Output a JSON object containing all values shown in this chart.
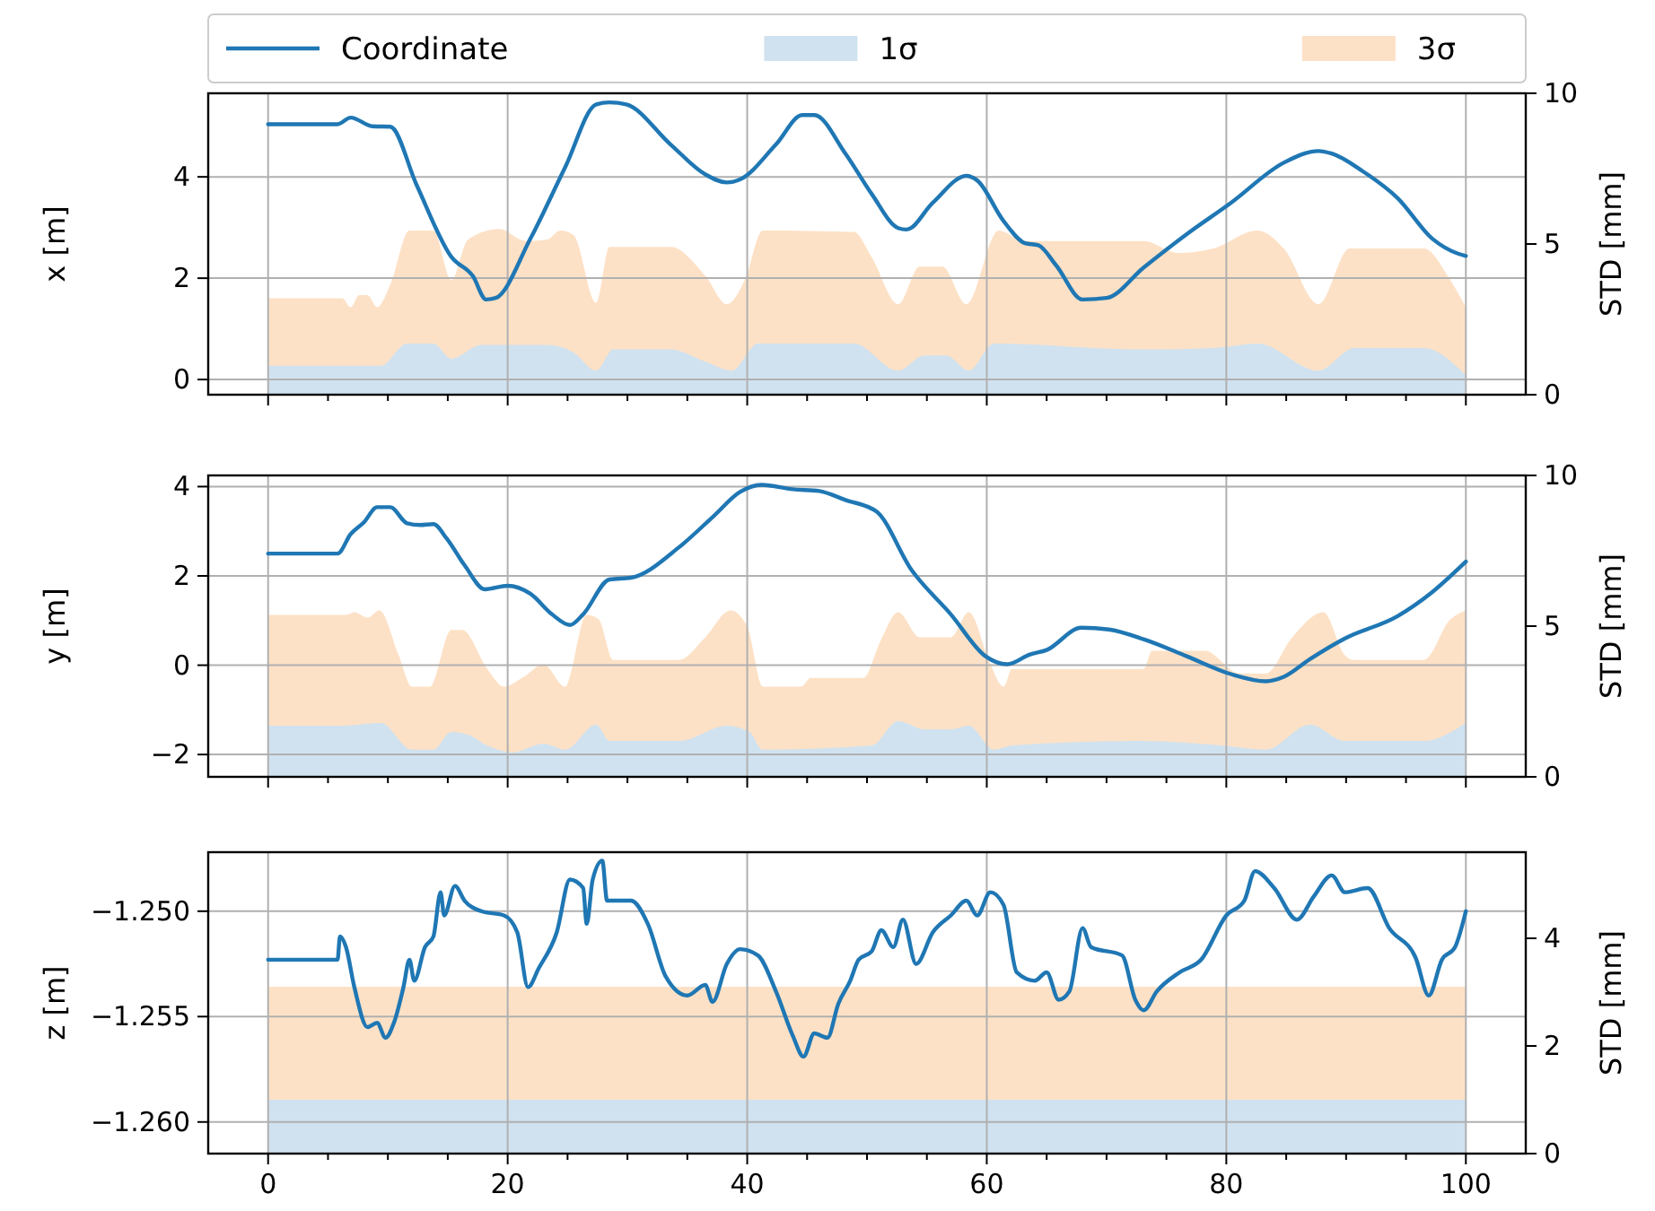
{
  "chart_data": [
    {
      "type": "line",
      "ylabel": "x [m]",
      "y2label": "STD [mm]",
      "legend": "top",
      "grid": true,
      "tick_labels": "y",
      "xlim": [
        -5,
        105
      ],
      "ylim": [
        -0.3,
        5.65
      ],
      "y2lim": [
        0,
        10
      ],
      "yticks": [
        0,
        2,
        4
      ],
      "y2ticks": [
        0,
        5,
        10
      ],
      "xticks": [
        0,
        {
          "value": 5,
          "label": null
        },
        {
          "value": 10,
          "label": null
        },
        {
          "value": 15,
          "label": null
        },
        20,
        {
          "value": 25,
          "label": null
        },
        {
          "value": 30,
          "label": null
        },
        {
          "value": 35,
          "label": null
        },
        40,
        {
          "value": 45,
          "label": null
        },
        {
          "value": 50,
          "label": null
        },
        {
          "value": 55,
          "label": null
        },
        60,
        {
          "value": 65,
          "label": null
        },
        {
          "value": 70,
          "label": null
        },
        {
          "value": 75,
          "label": null
        },
        80,
        {
          "value": 85,
          "label": null
        },
        {
          "value": 90,
          "label": null
        },
        {
          "value": 95,
          "label": null
        },
        100
      ],
      "series": [
        {
          "name": "Coordinate",
          "color": "#1f77b4",
          "x": [
            0,
            5.8,
            6.9,
            8.7,
            10.2,
            12.4,
            15.3,
            17.1,
            18.2,
            19,
            21.9,
            24.8,
            27.4,
            28.5,
            29.9,
            33.6,
            36.5,
            38.3,
            39.4,
            42.4,
            44.6,
            45.6,
            48.2,
            50.4,
            52.6,
            53.3,
            55.5,
            58.3,
            59.2,
            61.4,
            63.2,
            64.3,
            65.8,
            68,
            70,
            73.1,
            76.7,
            80.4,
            84.8,
            87.7,
            88.8,
            91.4,
            94.3,
            97.2,
            99.4,
            100
          ],
          "values": [
            5.04,
            5.04,
            5.17,
            5.0,
            4.99,
            3.84,
            2.42,
            2.04,
            1.58,
            1.61,
            2.78,
            4.19,
            5.43,
            5.47,
            5.43,
            4.64,
            4.05,
            3.89,
            3.95,
            4.64,
            5.22,
            5.22,
            4.46,
            3.66,
            2.99,
            2.96,
            3.49,
            4.02,
            3.93,
            3.13,
            2.69,
            2.65,
            2.25,
            1.58,
            1.61,
            2.21,
            2.87,
            3.49,
            4.28,
            4.51,
            4.46,
            4.11,
            3.58,
            2.78,
            2.48,
            2.44
          ]
        },
        {
          "name": "1σ",
          "type": "area",
          "axis": "y2",
          "color": "#d0e2ef",
          "x": [
            0,
            6.5,
            9.4,
            11.6,
            13.8,
            15.3,
            17.8,
            23.3,
            25.5,
            27.4,
            28.8,
            33.6,
            36.5,
            38.7,
            40.9,
            48.9,
            52.6,
            54.8,
            56.6,
            58.5,
            60.6,
            73.1,
            78.9,
            82.6,
            87.7,
            90.7,
            96.5,
            100
          ],
          "values": [
            0.96,
            0.96,
            0.96,
            1.7,
            1.7,
            1.2,
            1.65,
            1.65,
            1.4,
            0.8,
            1.5,
            1.5,
            1.1,
            0.8,
            1.7,
            1.7,
            0.8,
            1.3,
            1.3,
            0.8,
            1.7,
            1.5,
            1.55,
            1.7,
            0.8,
            1.55,
            1.55,
            0.65
          ]
        },
        {
          "name": "3σ",
          "type": "area",
          "axis": "y2",
          "color": "#fde1c6",
          "x": [
            0,
            6.2,
            6.9,
            7.6,
            8.3,
            9.1,
            10.2,
            11.8,
            13.8,
            15.3,
            16.7,
            19.3,
            21.5,
            23.3,
            24.4,
            25.5,
            27.4,
            28.5,
            33.6,
            36.5,
            38.3,
            39.8,
            41.3,
            48.9,
            50.4,
            52.6,
            54.4,
            56.3,
            58.3,
            61,
            63.2,
            73.1,
            76,
            78.9,
            82.6,
            84.8,
            87.7,
            90.3,
            96.5,
            98.7,
            100
          ],
          "values": [
            3.2,
            3.2,
            2.9,
            3.3,
            3.3,
            2.9,
            3.65,
            5.45,
            5.45,
            3.8,
            5.15,
            5.5,
            5.1,
            5.15,
            5.45,
            5.3,
            3.05,
            4.9,
            4.9,
            3.95,
            3.0,
            3.8,
            5.45,
            5.4,
            4.55,
            3.0,
            4.25,
            4.25,
            3.0,
            5.45,
            5.1,
            5.1,
            4.7,
            4.85,
            5.45,
            4.85,
            3.0,
            4.85,
            4.85,
            3.8,
            2.9
          ]
        }
      ]
    },
    {
      "type": "line",
      "ylabel": "y [m]",
      "y2label": "STD [mm]",
      "grid": true,
      "tick_labels": "y",
      "xlim": [
        -5,
        105
      ],
      "ylim": [
        -2.5,
        4.25
      ],
      "y2lim": [
        0,
        10
      ],
      "yticks": [
        {
          "value": -2,
          "label": "−2"
        },
        0,
        2,
        4
      ],
      "y2ticks": [
        0,
        5,
        10
      ],
      "xticks": [
        0,
        {
          "value": 5,
          "label": null
        },
        {
          "value": 10,
          "label": null
        },
        {
          "value": 15,
          "label": null
        },
        20,
        {
          "value": 25,
          "label": null
        },
        {
          "value": 30,
          "label": null
        },
        {
          "value": 35,
          "label": null
        },
        40,
        {
          "value": 45,
          "label": null
        },
        {
          "value": 50,
          "label": null
        },
        {
          "value": 55,
          "label": null
        },
        60,
        {
          "value": 65,
          "label": null
        },
        {
          "value": 70,
          "label": null
        },
        {
          "value": 75,
          "label": null
        },
        80,
        {
          "value": 85,
          "label": null
        },
        {
          "value": 90,
          "label": null
        },
        {
          "value": 95,
          "label": null
        },
        100
      ],
      "series": [
        {
          "color": "#1f77b4",
          "x": [
            0,
            5.8,
            6.9,
            8,
            9.1,
            10.2,
            11.6,
            12.7,
            13.8,
            14.9,
            16.4,
            18.1,
            20,
            21.9,
            23.7,
            25.2,
            26.3,
            28.5,
            30.3,
            34.3,
            37.2,
            39.4,
            41.2,
            43.8,
            46,
            48.2,
            50.8,
            53.7,
            57,
            59.9,
            61.7,
            63.6,
            65,
            67.9,
            70.2,
            73.1,
            76.7,
            80.4,
            83.3,
            84.8,
            87,
            89.9,
            94.3,
            97.2,
            100
          ],
          "values": [
            2.5,
            2.5,
            2.94,
            3.2,
            3.54,
            3.54,
            3.18,
            3.14,
            3.16,
            2.84,
            2.24,
            1.7,
            1.78,
            1.6,
            1.14,
            0.9,
            1.14,
            1.92,
            1.96,
            2.64,
            3.34,
            3.88,
            4.04,
            3.94,
            3.9,
            3.7,
            3.44,
            2.14,
            1.14,
            0.2,
            0.02,
            0.24,
            0.34,
            0.84,
            0.8,
            0.58,
            0.2,
            -0.2,
            -0.36,
            -0.26,
            0.14,
            0.6,
            1.1,
            1.64,
            2.32
          ]
        },
        {
          "type": "area",
          "axis": "y2",
          "color": "#d0e2ef",
          "x": [
            0,
            6.5,
            9.4,
            12,
            13.8,
            15.3,
            16.7,
            18.3,
            20.4,
            23,
            24.8,
            27.4,
            28.5,
            34.3,
            38.3,
            40.2,
            41.3,
            50.4,
            52.6,
            54.8,
            57,
            58.5,
            60.6,
            62.1,
            73.1,
            79.6,
            83.3,
            87,
            89.9,
            96.5,
            100
          ],
          "values": [
            1.7,
            1.7,
            1.79,
            0.9,
            0.9,
            1.49,
            1.4,
            1.04,
            0.81,
            1.1,
            0.9,
            1.73,
            1.19,
            1.19,
            1.7,
            1.49,
            0.9,
            1.04,
            1.85,
            1.58,
            1.58,
            1.7,
            0.9,
            1.04,
            1.19,
            1.04,
            0.9,
            1.73,
            1.19,
            1.19,
            1.79
          ]
        },
        {
          "type": "area",
          "axis": "y2",
          "color": "#fde1c6",
          "x": [
            0,
            6.5,
            7.2,
            8.3,
            9.3,
            10.9,
            12,
            13.5,
            15.3,
            16.2,
            18.3,
            19.7,
            21.2,
            23,
            24.8,
            26.6,
            27.6,
            28.8,
            34.3,
            36.5,
            38.6,
            40,
            41.3,
            44.5,
            45.3,
            49.7,
            51.1,
            52.6,
            54.4,
            57,
            58.5,
            60.3,
            61.4,
            62.1,
            73.1,
            73.8,
            78.2,
            81.1,
            83.3,
            85.5,
            88.1,
            89.9,
            90.6,
            96.5,
            98.7,
            100
          ],
          "values": [
            5.37,
            5.37,
            5.46,
            5.28,
            5.52,
            4.03,
            2.99,
            2.99,
            4.87,
            4.87,
            3.58,
            2.99,
            3.28,
            3.73,
            2.99,
            5.37,
            5.22,
            3.88,
            3.88,
            4.63,
            5.52,
            4.99,
            2.99,
            2.99,
            3.28,
            3.28,
            4.48,
            5.46,
            4.63,
            4.63,
            5.46,
            3.73,
            2.99,
            3.58,
            3.58,
            4.18,
            4.18,
            3.43,
            3.43,
            4.63,
            5.46,
            4.03,
            3.88,
            3.88,
            5.22,
            5.52
          ]
        }
      ]
    },
    {
      "type": "line",
      "ylabel": "z [m]",
      "y2label": "STD [mm]",
      "grid": true,
      "xlim": [
        -5,
        105
      ],
      "ylim": [
        -1.2615,
        -1.2472
      ],
      "y2lim": [
        0,
        5.6
      ],
      "yticks": [
        {
          "value": -1.26,
          "label": "−1.260"
        },
        {
          "value": -1.255,
          "label": "−1.255"
        },
        {
          "value": -1.25,
          "label": "−1.250"
        }
      ],
      "y2ticks": [
        0,
        2,
        4
      ],
      "xticks": [
        0,
        {
          "value": 5,
          "label": null
        },
        {
          "value": 10,
          "label": null
        },
        {
          "value": 15,
          "label": null
        },
        20,
        {
          "value": 25,
          "label": null
        },
        {
          "value": 30,
          "label": null
        },
        {
          "value": 35,
          "label": null
        },
        40,
        {
          "value": 45,
          "label": null
        },
        {
          "value": 50,
          "label": null
        },
        {
          "value": 55,
          "label": null
        },
        60,
        {
          "value": 65,
          "label": null
        },
        {
          "value": 70,
          "label": null
        },
        {
          "value": 75,
          "label": null
        },
        80,
        {
          "value": 85,
          "label": null
        },
        {
          "value": 90,
          "label": null
        },
        {
          "value": 95,
          "label": null
        },
        100
      ],
      "series": [
        {
          "color": "#1f77b4",
          "x": [
            0,
            5.8,
            6,
            6.5,
            7.2,
            8.3,
            9.1,
            9.8,
            10.5,
            11.3,
            11.8,
            12.2,
            13.1,
            13.8,
            14.4,
            14.7,
            15.6,
            16.4,
            17.8,
            19.7,
            20.8,
            21.7,
            22.6,
            24.1,
            25.2,
            26.3,
            26.6,
            27.1,
            27.9,
            28.3,
            30.3,
            31.7,
            33.2,
            35,
            36.5,
            37.1,
            38.3,
            39.4,
            40.9,
            42.4,
            43.8,
            44.7,
            45.6,
            46.7,
            47.6,
            48.6,
            49.3,
            50.4,
            51.2,
            52.2,
            53,
            54.1,
            55.5,
            57,
            58.3,
            59.2,
            60.3,
            61.4,
            62.5,
            64,
            65,
            66,
            66.9,
            68,
            68.7,
            71.3,
            72.4,
            73.1,
            74.2,
            76.1,
            77.9,
            80,
            81.5,
            82.4,
            84,
            85.9,
            87.3,
            88.8,
            89.9,
            91.8,
            93.6,
            95.8,
            96.9,
            98,
            99.1,
            100
          ],
          "values": [
            -1.2523,
            -1.2523,
            -1.2512,
            -1.2517,
            -1.2536,
            -1.2555,
            -1.2553,
            -1.256,
            -1.2553,
            -1.2536,
            -1.2523,
            -1.2533,
            -1.2517,
            -1.2512,
            -1.2491,
            -1.2502,
            -1.2488,
            -1.2495,
            -1.25,
            -1.2502,
            -1.251,
            -1.2536,
            -1.2527,
            -1.251,
            -1.2485,
            -1.2489,
            -1.2506,
            -1.2485,
            -1.2476,
            -1.2495,
            -1.2495,
            -1.2506,
            -1.2531,
            -1.254,
            -1.2535,
            -1.2543,
            -1.2525,
            -1.2518,
            -1.2521,
            -1.2538,
            -1.2559,
            -1.2569,
            -1.2558,
            -1.256,
            -1.2544,
            -1.2533,
            -1.2523,
            -1.2519,
            -1.2509,
            -1.2517,
            -1.2504,
            -1.2525,
            -1.251,
            -1.2502,
            -1.2495,
            -1.2502,
            -1.2491,
            -1.2497,
            -1.2529,
            -1.2533,
            -1.2529,
            -1.2542,
            -1.2538,
            -1.2508,
            -1.2517,
            -1.2521,
            -1.2542,
            -1.2547,
            -1.2538,
            -1.2529,
            -1.2523,
            -1.2502,
            -1.2495,
            -1.2481,
            -1.2489,
            -1.2504,
            -1.2493,
            -1.2483,
            -1.2491,
            -1.2489,
            -1.2508,
            -1.2522,
            -1.254,
            -1.2523,
            -1.2517,
            -1.25
          ]
        },
        {
          "type": "area",
          "axis": "y2",
          "color": "#d0e2ef",
          "x": [
            0,
            100
          ],
          "values": [
            1.0,
            1.0
          ]
        },
        {
          "type": "area",
          "axis": "y2",
          "color": "#fde1c6",
          "x": [
            0,
            100
          ],
          "values": [
            3.1,
            3.1
          ]
        }
      ]
    }
  ]
}
